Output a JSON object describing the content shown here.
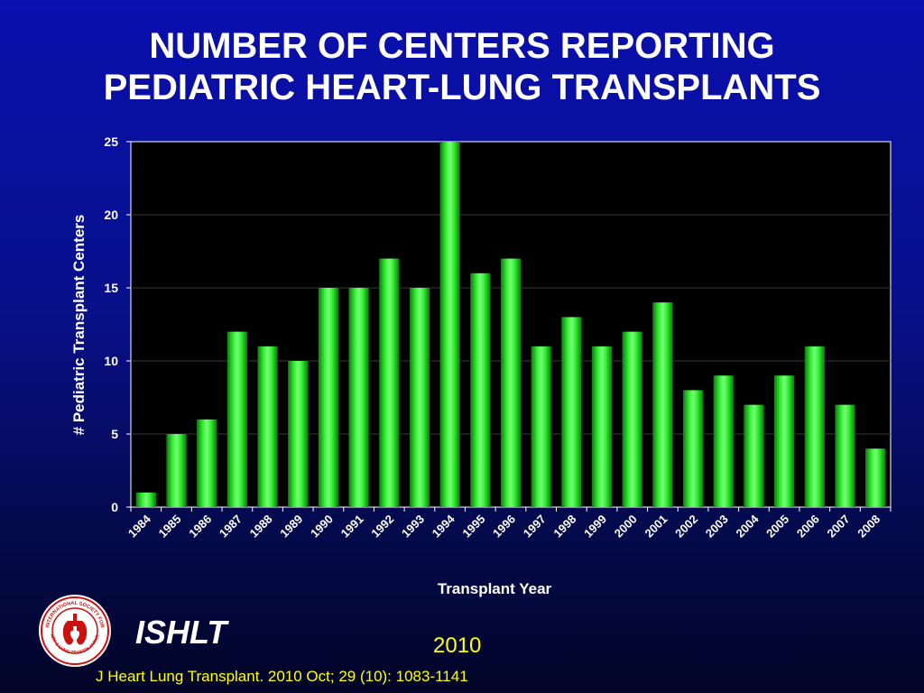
{
  "title_line1": "NUMBER OF CENTERS REPORTING",
  "title_line2": "PEDIATRIC HEART-LUNG TRANSPLANTS",
  "organization": "ISHLT",
  "year": "2010",
  "citation": "J Heart Lung Transplant. 2010 Oct; 29 (10): 1083-1141",
  "logo": {
    "icon": "ishlt-seal-icon",
    "text_top": "INTERNATIONAL SOCIETY FOR",
    "text_bottom": "HEART & LUNG TRANSPLANTATION"
  },
  "colors": {
    "background_top": "#0a0fae",
    "background_bottom": "#020527",
    "plot_background": "#000000",
    "bar": "#22dd22",
    "text": "#ffffff",
    "footer_text": "#ffff00"
  },
  "chart_data": {
    "type": "bar",
    "xlabel": "Transplant Year",
    "ylabel": "# Pediatric Transplant Centers",
    "ylim": [
      0,
      25
    ],
    "yticks": [
      0,
      5,
      10,
      15,
      20,
      25
    ],
    "grid": true,
    "legend": "none",
    "categories": [
      "1984",
      "1985",
      "1986",
      "1987",
      "1988",
      "1989",
      "1990",
      "1991",
      "1992",
      "1993",
      "1994",
      "1995",
      "1996",
      "1997",
      "1998",
      "1999",
      "2000",
      "2001",
      "2002",
      "2003",
      "2004",
      "2005",
      "2006",
      "2007",
      "2008"
    ],
    "values": [
      1,
      5,
      6,
      12,
      11,
      10,
      15,
      15,
      17,
      15,
      25,
      16,
      17,
      11,
      13,
      11,
      12,
      14,
      8,
      9,
      7,
      9,
      11,
      7,
      4
    ]
  }
}
